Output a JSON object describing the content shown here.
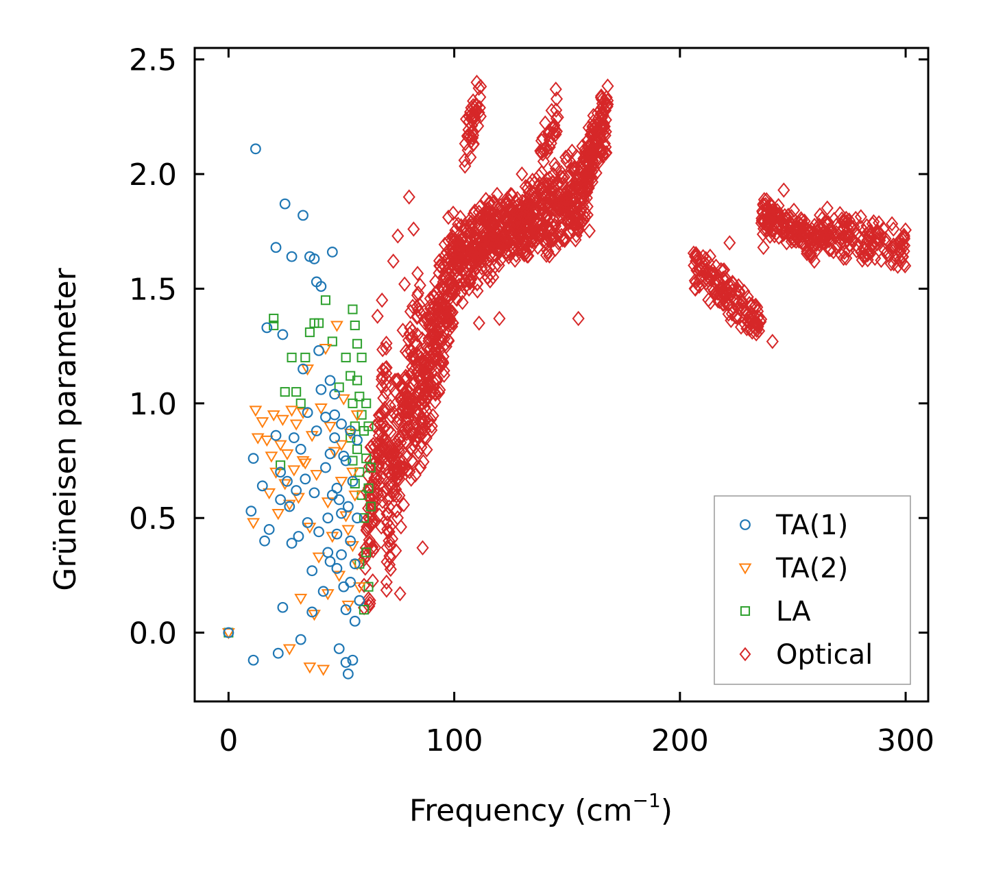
{
  "chart_data": {
    "type": "scatter",
    "title": "",
    "xlabel": "Frequency (cm",
    "xlabel_sup": "−1",
    "xlabel_tail": ")",
    "ylabel": "Grüneisen parameter",
    "xlim": [
      -15,
      310
    ],
    "ylim": [
      -0.3,
      2.55
    ],
    "xticks": [
      0,
      100,
      200,
      300
    ],
    "xtick_labels": [
      "0",
      "100",
      "200",
      "300"
    ],
    "yticks": [
      0.0,
      0.5,
      1.0,
      1.5,
      2.0,
      2.5
    ],
    "ytick_labels": [
      "0.0",
      "0.5",
      "1.0",
      "1.5",
      "2.0",
      "2.5"
    ],
    "legend_position": "lower-right",
    "series": [
      {
        "name": "TA(1)",
        "marker": "circle",
        "color": "#1f77b4",
        "points": [
          [
            0,
            0.0
          ],
          [
            11,
            -0.12
          ],
          [
            12,
            2.11
          ],
          [
            11,
            0.76
          ],
          [
            10,
            0.53
          ],
          [
            15,
            0.64
          ],
          [
            16,
            0.4
          ],
          [
            17,
            1.33
          ],
          [
            18,
            0.45
          ],
          [
            21,
            1.68
          ],
          [
            21,
            0.86
          ],
          [
            22,
            -0.09
          ],
          [
            23,
            0.7
          ],
          [
            23,
            0.58
          ],
          [
            24,
            1.3
          ],
          [
            24,
            0.11
          ],
          [
            25,
            1.87
          ],
          [
            26,
            0.66
          ],
          [
            27,
            0.55
          ],
          [
            28,
            1.64
          ],
          [
            28,
            0.39
          ],
          [
            29,
            0.85
          ],
          [
            30,
            0.62
          ],
          [
            31,
            0.42
          ],
          [
            32,
            0.8
          ],
          [
            32,
            -0.03
          ],
          [
            33,
            1.82
          ],
          [
            33,
            1.15
          ],
          [
            34,
            0.67
          ],
          [
            35,
            0.96
          ],
          [
            35,
            0.48
          ],
          [
            36,
            1.64
          ],
          [
            37,
            0.27
          ],
          [
            37,
            0.09
          ],
          [
            38,
            1.63
          ],
          [
            38,
            0.61
          ],
          [
            39,
            1.53
          ],
          [
            39,
            0.88
          ],
          [
            40,
            1.23
          ],
          [
            40,
            0.44
          ],
          [
            41,
            1.51
          ],
          [
            41,
            1.06
          ],
          [
            42,
            0.18
          ],
          [
            43,
            0.94
          ],
          [
            43,
            0.72
          ],
          [
            44,
            0.5
          ],
          [
            45,
            1.1
          ],
          [
            45,
            0.31
          ],
          [
            46,
            1.66
          ],
          [
            47,
            1.04
          ],
          [
            47,
            0.85
          ],
          [
            48,
            0.63
          ],
          [
            48,
            0.43
          ],
          [
            49,
            0.58
          ],
          [
            49,
            -0.07
          ],
          [
            50,
            0.91
          ],
          [
            50,
            0.34
          ],
          [
            51,
            0.77
          ],
          [
            51,
            0.2
          ],
          [
            52,
            0.1
          ],
          [
            52,
            -0.13
          ],
          [
            53,
            0.55
          ],
          [
            53,
            -0.18
          ],
          [
            54,
            0.88
          ],
          [
            54,
            0.4
          ],
          [
            55,
            0.66
          ],
          [
            55,
            -0.12
          ],
          [
            56,
            0.3
          ],
          [
            56,
            0.05
          ],
          [
            57,
            0.84
          ],
          [
            58,
            0.14
          ],
          [
            45,
            0.78
          ],
          [
            46,
            0.6
          ],
          [
            44,
            0.35
          ],
          [
            48,
            0.28
          ],
          [
            50,
            0.52
          ],
          [
            52,
            0.75
          ],
          [
            54,
            0.22
          ],
          [
            57,
            0.5
          ],
          [
            47,
            0.95
          ]
        ]
      },
      {
        "name": "TA(2)",
        "marker": "triangle-down",
        "color": "#ff7f0e",
        "points": [
          [
            0,
            0.0
          ],
          [
            11,
            0.48
          ],
          [
            12,
            0.97
          ],
          [
            13,
            0.85
          ],
          [
            15,
            0.92
          ],
          [
            17,
            0.84
          ],
          [
            18,
            0.61
          ],
          [
            19,
            0.77
          ],
          [
            20,
            0.95
          ],
          [
            21,
            0.7
          ],
          [
            22,
            0.52
          ],
          [
            23,
            0.82
          ],
          [
            24,
            0.93
          ],
          [
            25,
            0.65
          ],
          [
            26,
            0.78
          ],
          [
            27,
            0.56
          ],
          [
            28,
            0.97
          ],
          [
            29,
            0.71
          ],
          [
            30,
            0.91
          ],
          [
            31,
            0.59
          ],
          [
            32,
            0.15
          ],
          [
            33,
            0.96
          ],
          [
            34,
            0.74
          ],
          [
            35,
            1.15
          ],
          [
            36,
            0.46
          ],
          [
            37,
            0.86
          ],
          [
            38,
            0.08
          ],
          [
            39,
            0.69
          ],
          [
            40,
            0.33
          ],
          [
            41,
            0.98
          ],
          [
            42,
            -0.16
          ],
          [
            43,
            1.24
          ],
          [
            44,
            0.57
          ],
          [
            45,
            0.9
          ],
          [
            46,
            0.42
          ],
          [
            47,
            0.79
          ],
          [
            48,
            1.34
          ],
          [
            49,
            0.25
          ],
          [
            50,
            0.66
          ],
          [
            51,
            1.02
          ],
          [
            52,
            0.51
          ],
          [
            53,
            0.12
          ],
          [
            54,
            0.87
          ],
          [
            55,
            0.38
          ],
          [
            56,
            0.6
          ],
          [
            57,
            0.95
          ],
          [
            58,
            0.2
          ],
          [
            36,
            -0.15
          ],
          [
            27,
            -0.07
          ],
          [
            33,
            0.75
          ],
          [
            44,
            0.17
          ],
          [
            50,
            0.82
          ],
          [
            53,
            0.45
          ],
          [
            55,
            0.7
          ],
          [
            57,
            0.3
          ]
        ]
      },
      {
        "name": "LA",
        "marker": "square",
        "color": "#2ca02c",
        "points": [
          [
            0,
            0.0
          ],
          [
            20,
            1.37
          ],
          [
            20,
            1.34
          ],
          [
            23,
            0.73
          ],
          [
            25,
            1.05
          ],
          [
            28,
            1.2
          ],
          [
            30,
            1.05
          ],
          [
            32,
            1.0
          ],
          [
            34,
            1.2
          ],
          [
            36,
            1.31
          ],
          [
            38,
            1.35
          ],
          [
            40,
            1.35
          ],
          [
            43,
            1.45
          ],
          [
            46,
            1.27
          ],
          [
            49,
            1.07
          ],
          [
            52,
            1.2
          ],
          [
            54,
            1.12
          ],
          [
            55,
            1.41
          ],
          [
            56,
            1.34
          ],
          [
            57,
            1.26
          ],
          [
            58,
            1.03
          ],
          [
            59,
            0.95
          ],
          [
            60,
            0.88
          ],
          [
            61,
            0.76
          ],
          [
            62,
            0.63
          ],
          [
            63,
            0.55
          ],
          [
            55,
            1.0
          ],
          [
            56,
            0.9
          ],
          [
            57,
            0.8
          ],
          [
            58,
            0.7
          ],
          [
            59,
            0.6
          ],
          [
            60,
            0.5
          ],
          [
            61,
            0.35
          ],
          [
            62,
            0.2
          ],
          [
            60,
            0.1
          ],
          [
            58,
            0.3
          ],
          [
            56,
            0.65
          ],
          [
            55,
            0.75
          ],
          [
            54,
            0.85
          ],
          [
            57,
            1.1
          ],
          [
            59,
            1.2
          ],
          [
            61,
            1.0
          ],
          [
            62,
            0.9
          ],
          [
            63,
            0.72
          ]
        ]
      },
      {
        "name": "Optical",
        "marker": "diamond",
        "color": "#d62728",
        "clusters": [
          {
            "x": [
              60,
              70
            ],
            "y_center": [
              0.3,
              1.0
            ],
            "y_spread": 0.45,
            "count": 120
          },
          {
            "x": [
              70,
              85
            ],
            "y_center": [
              0.6,
              1.2
            ],
            "y_spread": 0.45,
            "count": 220
          },
          {
            "x": [
              85,
              100
            ],
            "y_center": [
              1.0,
              1.6
            ],
            "y_spread": 0.35,
            "count": 260
          },
          {
            "x": [
              100,
              120
            ],
            "y_center": [
              1.6,
              1.75
            ],
            "y_spread": 0.2,
            "count": 260
          },
          {
            "x": [
              120,
              140
            ],
            "y_center": [
              1.72,
              1.85
            ],
            "y_spread": 0.18,
            "count": 240
          },
          {
            "x": [
              140,
              160
            ],
            "y_center": [
              1.82,
              1.95
            ],
            "y_spread": 0.22,
            "count": 220
          },
          {
            "x": [
              158,
              168
            ],
            "y_center": [
              2.05,
              2.25
            ],
            "y_spread": 0.18,
            "count": 120
          },
          {
            "x": [
              206,
              236
            ],
            "y_center": [
              1.6,
              1.35
            ],
            "y_spread": 0.12,
            "count": 150
          },
          {
            "x": [
              236,
              262
            ],
            "y_center": [
              1.82,
              1.7
            ],
            "y_spread": 0.1,
            "count": 150
          },
          {
            "x": [
              262,
              300
            ],
            "y_center": [
              1.75,
              1.68
            ],
            "y_spread": 0.12,
            "count": 160
          },
          {
            "x": [
              104,
              112
            ],
            "y_center": [
              2.1,
              2.3
            ],
            "y_spread": 0.12,
            "count": 40
          },
          {
            "x": [
              138,
              146
            ],
            "y_center": [
              2.05,
              2.25
            ],
            "y_spread": 0.12,
            "count": 30
          }
        ],
        "outliers": [
          [
            75,
            1.73
          ],
          [
            80,
            1.9
          ],
          [
            73,
            1.62
          ],
          [
            78,
            1.52
          ],
          [
            82,
            1.76
          ],
          [
            66,
            1.38
          ],
          [
            68,
            1.45
          ],
          [
            76,
            0.17
          ],
          [
            86,
            0.37
          ],
          [
            70,
            0.22
          ],
          [
            222,
            1.7
          ],
          [
            241,
            1.27
          ],
          [
            246,
            1.93
          ],
          [
            248,
            1.82
          ],
          [
            237,
            1.68
          ],
          [
            225,
            1.43
          ],
          [
            111,
            1.35
          ],
          [
            120,
            1.37
          ],
          [
            155,
            1.37
          ],
          [
            145,
            2.37
          ],
          [
            110,
            2.4
          ],
          [
            130,
            2.0
          ]
        ]
      }
    ]
  }
}
